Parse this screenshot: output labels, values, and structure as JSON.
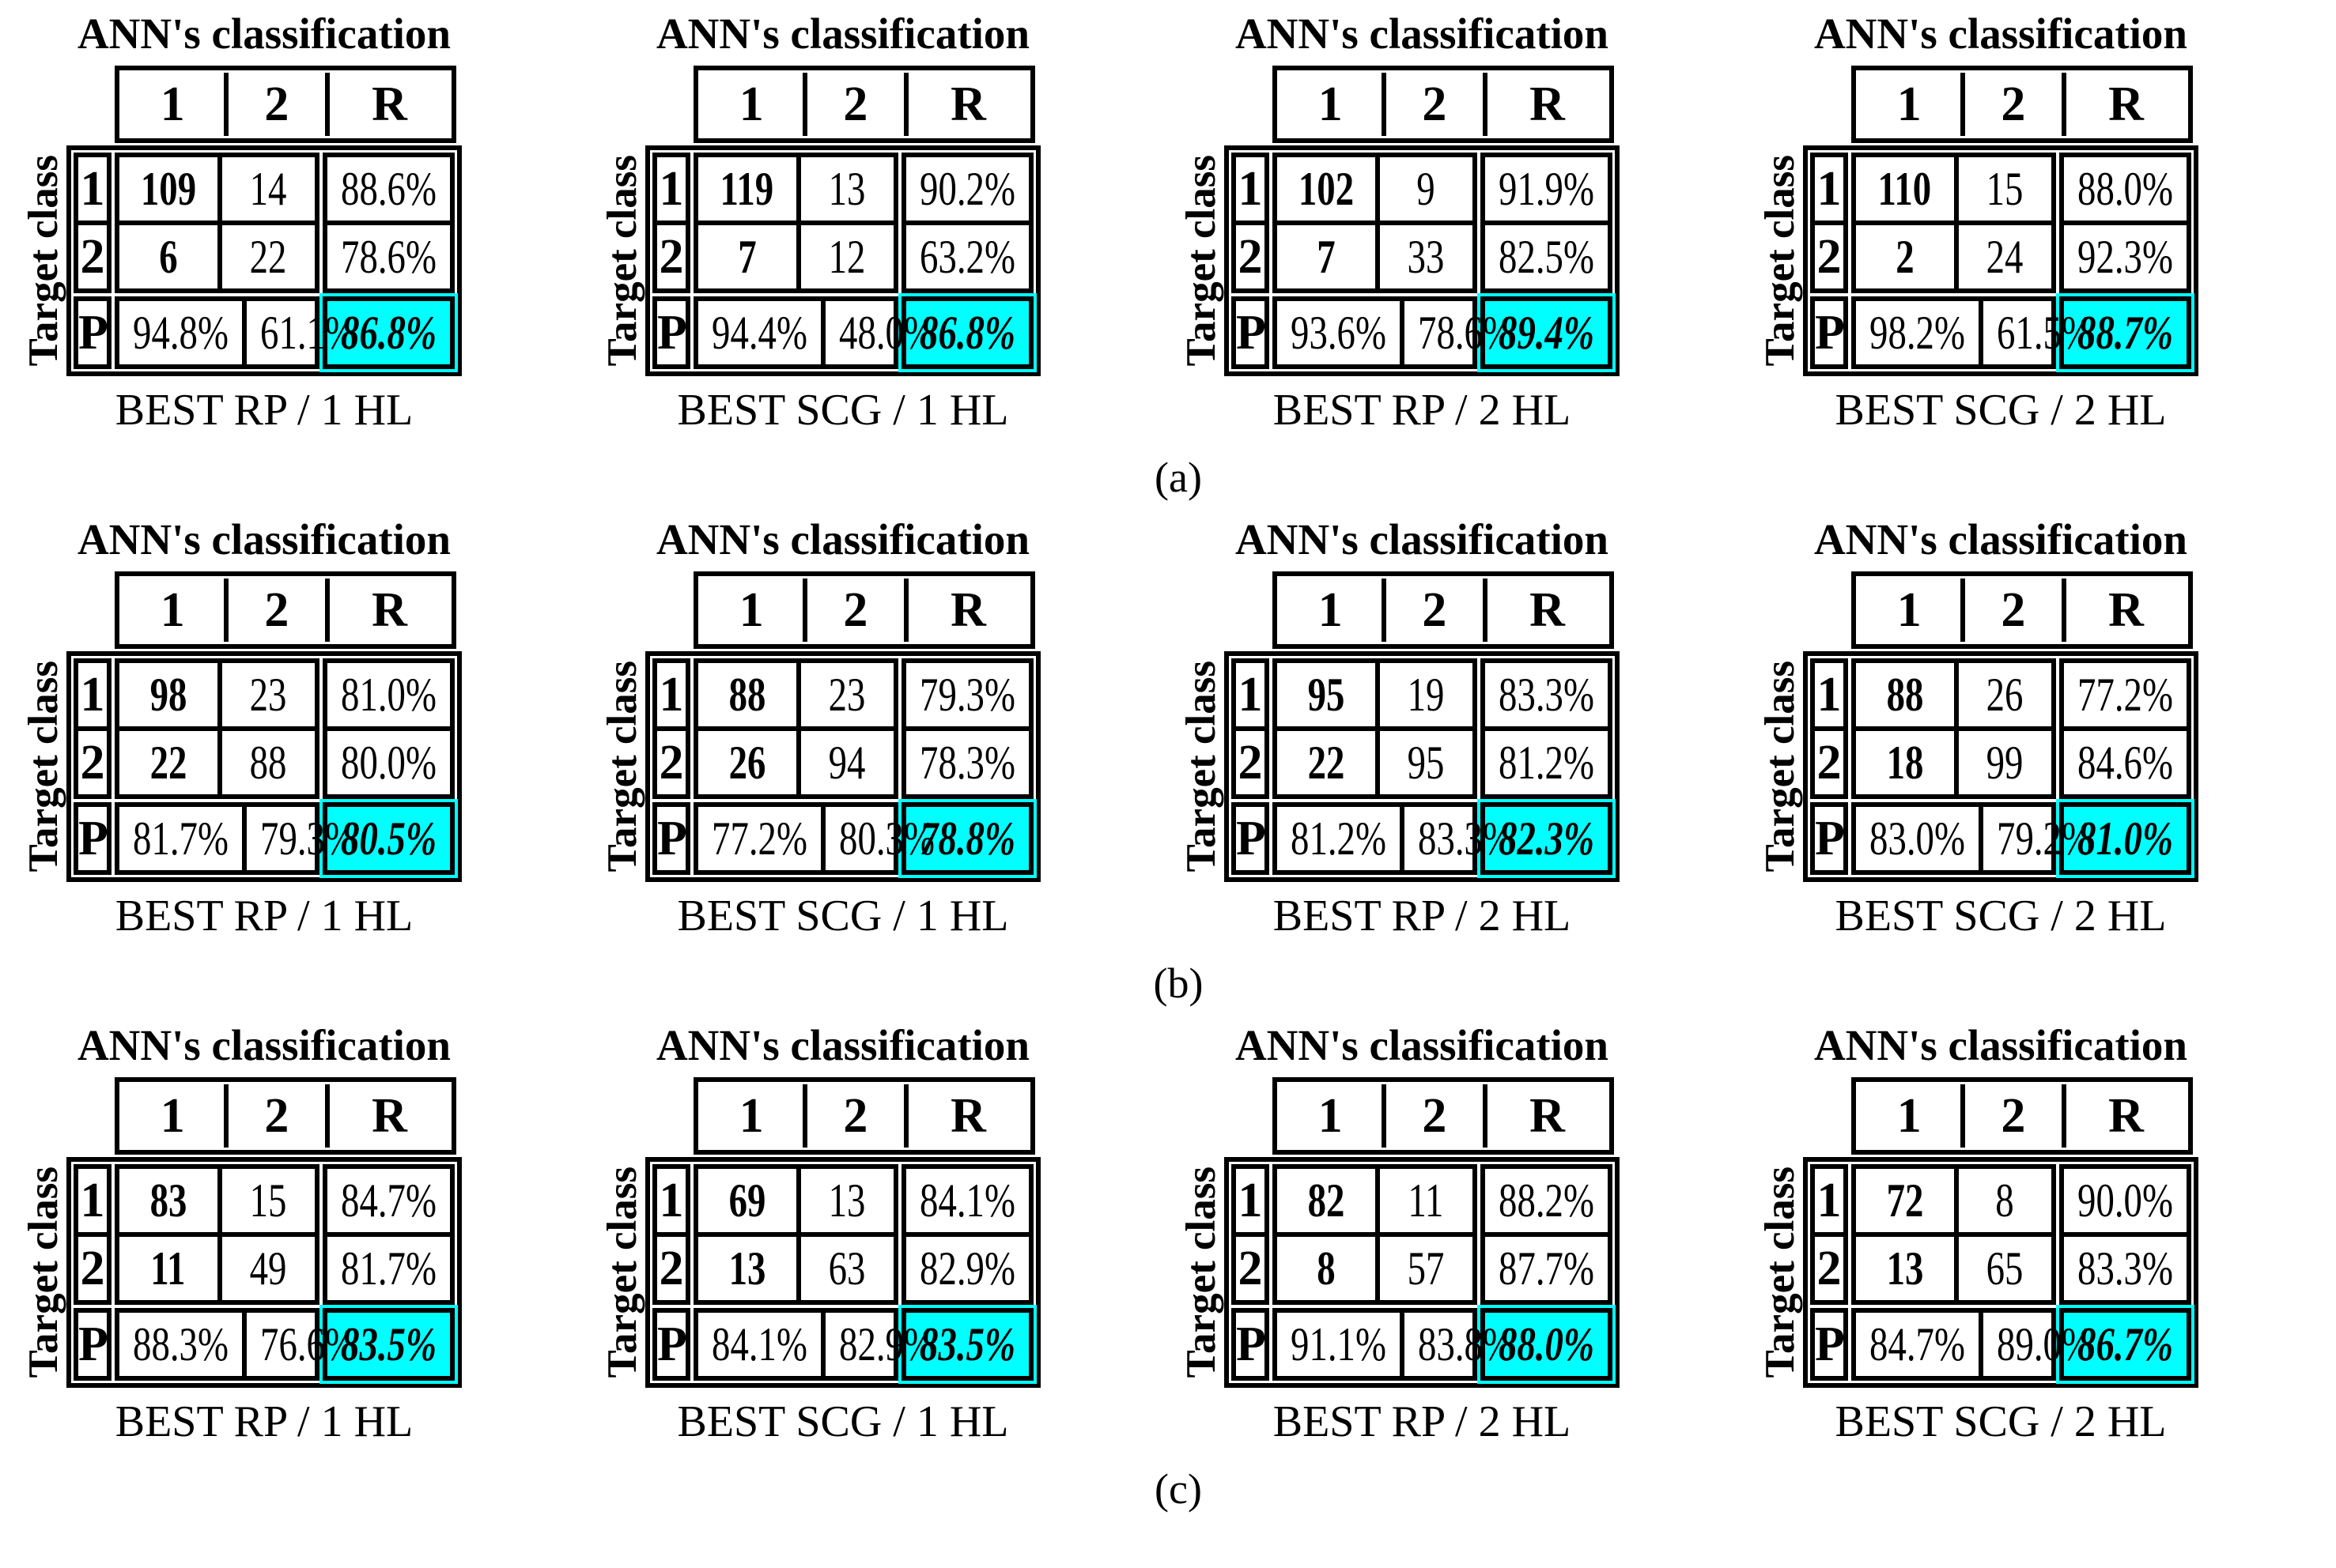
{
  "accent_color": "#00ffff",
  "matrix_title": "ANN's classification",
  "target_class_label": "Target class",
  "header": [
    "1",
    "2",
    "R"
  ],
  "row_labels": [
    "1",
    "2",
    "P"
  ],
  "sections": [
    {
      "label": "(a)",
      "tables": [
        {
          "caption": "BEST RP / 1 HL",
          "rows": [
            [
              "109",
              "14",
              "88.6%"
            ],
            [
              "6",
              "22",
              "78.6%"
            ],
            [
              "94.8%",
              "61.1%",
              "86.8%"
            ]
          ]
        },
        {
          "caption": "BEST SCG / 1 HL",
          "rows": [
            [
              "119",
              "13",
              "90.2%"
            ],
            [
              "7",
              "12",
              "63.2%"
            ],
            [
              "94.4%",
              "48.0%",
              "86.8%"
            ]
          ]
        },
        {
          "caption": "BEST RP / 2 HL",
          "rows": [
            [
              "102",
              "9",
              "91.9%"
            ],
            [
              "7",
              "33",
              "82.5%"
            ],
            [
              "93.6%",
              "78.6%",
              "89.4%"
            ]
          ]
        },
        {
          "caption": "BEST SCG / 2 HL",
          "rows": [
            [
              "110",
              "15",
              "88.0%"
            ],
            [
              "2",
              "24",
              "92.3%"
            ],
            [
              "98.2%",
              "61.5%",
              "88.7%"
            ]
          ]
        }
      ]
    },
    {
      "label": "(b)",
      "tables": [
        {
          "caption": "BEST RP / 1 HL",
          "rows": [
            [
              "98",
              "23",
              "81.0%"
            ],
            [
              "22",
              "88",
              "80.0%"
            ],
            [
              "81.7%",
              "79.3%",
              "80.5%"
            ]
          ]
        },
        {
          "caption": "BEST SCG / 1 HL",
          "rows": [
            [
              "88",
              "23",
              "79.3%"
            ],
            [
              "26",
              "94",
              "78.3%"
            ],
            [
              "77.2%",
              "80.3%",
              "78.8%"
            ]
          ]
        },
        {
          "caption": "BEST RP / 2 HL",
          "rows": [
            [
              "95",
              "19",
              "83.3%"
            ],
            [
              "22",
              "95",
              "81.2%"
            ],
            [
              "81.2%",
              "83.3%",
              "82.3%"
            ]
          ]
        },
        {
          "caption": "BEST SCG / 2 HL",
          "rows": [
            [
              "88",
              "26",
              "77.2%"
            ],
            [
              "18",
              "99",
              "84.6%"
            ],
            [
              "83.0%",
              "79.2%",
              "81.0%"
            ]
          ]
        }
      ]
    },
    {
      "label": "(c)",
      "tables": [
        {
          "caption": "BEST RP / 1 HL",
          "rows": [
            [
              "83",
              "15",
              "84.7%"
            ],
            [
              "11",
              "49",
              "81.7%"
            ],
            [
              "88.3%",
              "76.6%",
              "83.5%"
            ]
          ]
        },
        {
          "caption": "BEST SCG / 1 HL",
          "rows": [
            [
              "69",
              "13",
              "84.1%"
            ],
            [
              "13",
              "63",
              "82.9%"
            ],
            [
              "84.1%",
              "82.9%",
              "83.5%"
            ]
          ]
        },
        {
          "caption": "BEST RP / 2 HL",
          "rows": [
            [
              "82",
              "11",
              "88.2%"
            ],
            [
              "8",
              "57",
              "87.7%"
            ],
            [
              "91.1%",
              "83.8%",
              "88.0%"
            ]
          ]
        },
        {
          "caption": "BEST SCG / 2 HL",
          "rows": [
            [
              "72",
              "8",
              "90.0%"
            ],
            [
              "13",
              "65",
              "83.3%"
            ],
            [
              "84.7%",
              "89.0%",
              "86.7%"
            ]
          ]
        }
      ]
    }
  ]
}
